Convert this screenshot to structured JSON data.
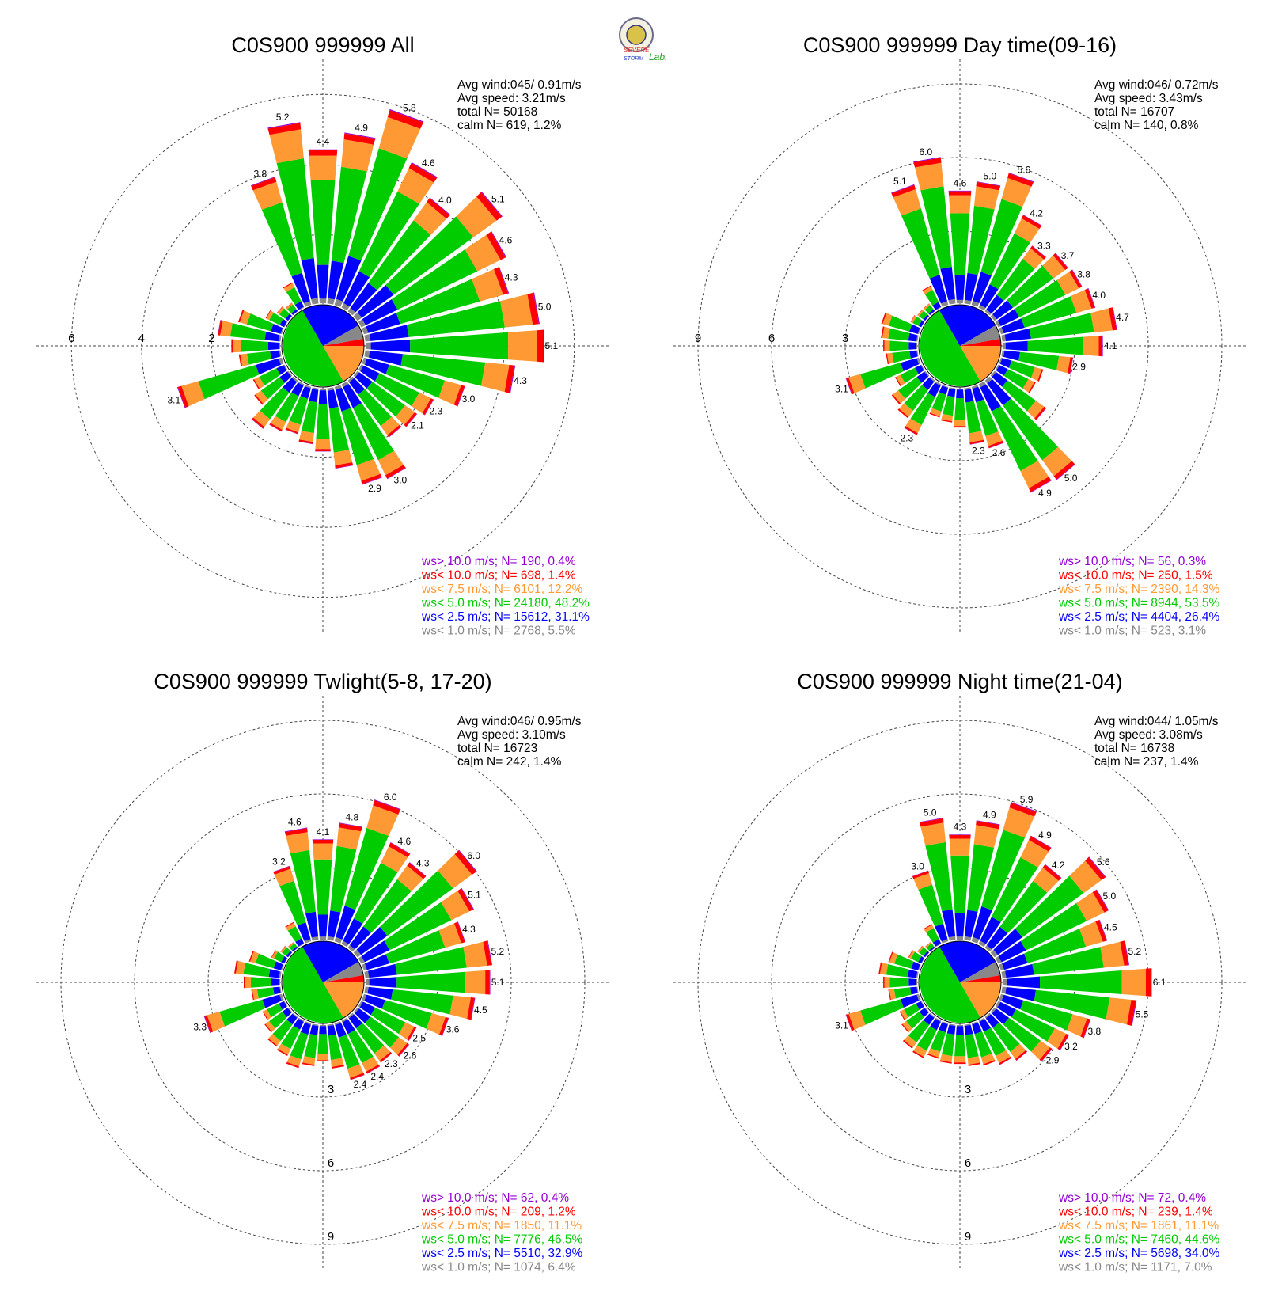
{
  "logo": {
    "text_severe": "SEVERE",
    "text_storm": "STORM",
    "text_lab": "Lab."
  },
  "categories": [
    {
      "name": "ws> 10.0 m/s",
      "color": "#9400d3"
    },
    {
      "name": "ws< 10.0 m/s",
      "color": "#ff0000"
    },
    {
      "name": "ws< 7.5 m/s",
      "color": "#ff9933"
    },
    {
      "name": "ws< 5.0 m/s",
      "color": "#00cc00"
    },
    {
      "name": "ws< 2.5 m/s",
      "color": "#0000ff"
    },
    {
      "name": "ws< 1.0 m/s",
      "color": "#888888"
    }
  ],
  "panels": [
    {
      "title": "C0S900 999999 All",
      "stats": [
        "Avg wind:045/ 0.91m/s",
        "Avg speed: 3.21m/s",
        "total N=      50168",
        "calm N=   619,   1.2%"
      ],
      "ring_labels": [
        "2",
        "4",
        "6"
      ],
      "legend": [
        "ws> 10.0 m/s; N=   190,  0.4%",
        "ws< 10.0 m/s; N=   698,  1.4%",
        "ws<  7.5 m/s; N=  6101, 12.2%",
        "ws<  5.0 m/s; N= 24180, 48.2%",
        "ws<  2.5 m/s; N= 15612, 31.1%",
        "ws<  1.0 m/s; N=  2768,  5.5%"
      ]
    },
    {
      "title": "C0S900 999999 Day time(09-16)",
      "stats": [
        "Avg wind:046/ 0.72m/s",
        "Avg speed: 3.43m/s",
        "total N=      16707",
        "calm N=   140,   0.8%"
      ],
      "ring_labels": [
        "3",
        "6",
        "9"
      ],
      "legend": [
        "ws> 10.0 m/s; N=    56,  0.3%",
        "ws< 10.0 m/s; N=   250,  1.5%",
        "ws<  7.5 m/s; N=  2390, 14.3%",
        "ws<  5.0 m/s; N=  8944, 53.5%",
        "ws<  2.5 m/s; N=  4404, 26.4%",
        "ws<  1.0 m/s; N=   523,  3.1%"
      ]
    },
    {
      "title": "C0S900 999999 Twlight(5-8, 17-20)",
      "stats": [
        "Avg wind:046/ 0.95m/s",
        "Avg speed: 3.10m/s",
        "total N=      16723",
        "calm N=   242,   1.4%"
      ],
      "ring_labels": [
        "3",
        "6",
        "9"
      ],
      "legend": [
        "ws> 10.0 m/s; N=    62,  0.4%",
        "ws< 10.0 m/s; N=   209,  1.2%",
        "ws<  7.5 m/s; N=  1850, 11.1%",
        "ws<  5.0 m/s; N=  7776, 46.5%",
        "ws<  2.5 m/s; N=  5510, 32.9%",
        "ws<  1.0 m/s; N=  1074,  6.4%"
      ]
    },
    {
      "title": "C0S900 999999 Night time(21-04)",
      "stats": [
        "Avg wind:044/ 1.05m/s",
        "Avg speed: 3.08m/s",
        "total N=      16738",
        "calm N=   237,   1.4%"
      ],
      "ring_labels": [
        "3",
        "6",
        "9"
      ],
      "legend": [
        "ws> 10.0 m/s; N=    72,  0.4%",
        "ws< 10.0 m/s; N=   239,  1.4%",
        "ws<  7.5 m/s; N=  1861, 11.1%",
        "ws<  5.0 m/s; N=  7460, 44.6%",
        "ws<  2.5 m/s; N=  5698, 34.0%",
        "ws<  1.0 m/s; N=  1171,  7.0%"
      ]
    }
  ],
  "chart_data": [
    {
      "type": "wind-rose",
      "title": "C0S900 999999 All",
      "radial_unit": "%",
      "rlim": [
        0,
        7
      ],
      "ring_ticks": [
        2,
        4,
        6
      ],
      "sector_count": 36,
      "stack_order": [
        "ws< 1.0 m/s",
        "ws< 2.5 m/s",
        "ws< 5.0 m/s",
        "ws< 7.5 m/s",
        "ws< 10.0 m/s",
        "ws> 10.0 m/s"
      ],
      "sector_angle_deg": [
        0,
        10,
        20,
        30,
        40,
        50,
        60,
        70,
        80,
        90,
        100,
        110,
        120,
        130,
        140,
        150,
        160,
        170,
        180,
        190,
        200,
        210,
        220,
        230,
        240,
        250,
        260,
        270,
        280,
        290,
        300,
        310,
        320,
        330,
        340,
        350
      ],
      "sector_totals": [
        4.4,
        4.9,
        5.8,
        4.6,
        4.0,
        5.1,
        4.6,
        4.3,
        5.0,
        5.1,
        4.3,
        3.0,
        2.3,
        2.1,
        2.0,
        3.0,
        2.9,
        2.3,
        1.8,
        1.6,
        1.4,
        1.5,
        1.7,
        1.2,
        1.0,
        3.1,
        1.2,
        1.4,
        1.8,
        1.3,
        0.6,
        0.4,
        0.3,
        0.8,
        3.8,
        5.2
      ],
      "sector_labels": [
        "4.4",
        "4.9",
        "5.8",
        "4.6",
        "4.0",
        "5.1",
        "4.6",
        "4.3",
        "5.0",
        "5.1",
        "4.3",
        "3.0",
        "2.3",
        "2.1",
        "",
        "3.0",
        "2.9",
        "",
        "",
        "",
        "",
        "",
        "",
        "",
        "",
        "3.1",
        "",
        "",
        "",
        "",
        "",
        "",
        "",
        "",
        "3.8",
        "5.2"
      ]
    },
    {
      "type": "wind-rose",
      "title": "C0S900 999999 Day time(09-16)",
      "radial_unit": "%",
      "rlim": [
        0,
        10
      ],
      "ring_ticks": [
        3,
        6,
        9
      ],
      "sector_count": 36,
      "stack_order": [
        "ws< 1.0 m/s",
        "ws< 2.5 m/s",
        "ws< 5.0 m/s",
        "ws< 7.5 m/s",
        "ws< 10.0 m/s",
        "ws> 10.0 m/s"
      ],
      "sector_angle_deg": [
        0,
        10,
        20,
        30,
        40,
        50,
        60,
        70,
        80,
        90,
        100,
        110,
        120,
        130,
        140,
        150,
        160,
        170,
        180,
        190,
        200,
        210,
        220,
        230,
        240,
        250,
        260,
        270,
        280,
        290,
        300,
        310,
        320,
        330,
        340,
        350
      ],
      "sector_totals": [
        4.6,
        5.0,
        5.6,
        4.2,
        3.3,
        3.7,
        3.8,
        4.0,
        4.7,
        4.1,
        2.9,
        1.8,
        1.7,
        2.6,
        5.0,
        4.9,
        2.6,
        2.3,
        1.6,
        1.4,
        1.3,
        2.3,
        1.9,
        1.7,
        1.2,
        3.1,
        1.3,
        1.4,
        1.5,
        1.6,
        0.5,
        0.4,
        0.4,
        1.0,
        5.1,
        6.0
      ],
      "sector_labels": [
        "4.6",
        "5.0",
        "5.6",
        "4.2",
        "3.3",
        "3.7",
        "3.8",
        "4.0",
        "4.7",
        "4.1",
        "2.9",
        "",
        "",
        "",
        "5.0",
        "4.9",
        "2.6",
        "2.3",
        "",
        "",
        "",
        "2.3",
        "",
        "",
        "",
        "3.1",
        "",
        "",
        "",
        "",
        "",
        "",
        "",
        "",
        "5.1",
        "6.0"
      ]
    },
    {
      "type": "wind-rose",
      "title": "C0S900 999999 Twlight(5-8, 17-20)",
      "radial_unit": "%",
      "rlim": [
        0,
        10
      ],
      "ring_ticks": [
        3,
        6,
        9
      ],
      "sector_count": 36,
      "stack_order": [
        "ws< 1.0 m/s",
        "ws< 2.5 m/s",
        "ws< 5.0 m/s",
        "ws< 7.5 m/s",
        "ws< 10.0 m/s",
        "ws> 10.0 m/s"
      ],
      "sector_angle_deg": [
        0,
        10,
        20,
        30,
        40,
        50,
        60,
        70,
        80,
        90,
        100,
        110,
        120,
        130,
        140,
        150,
        160,
        170,
        180,
        190,
        200,
        210,
        220,
        230,
        240,
        250,
        260,
        270,
        280,
        290,
        300,
        310,
        320,
        330,
        340,
        350
      ],
      "sector_totals": [
        4.1,
        4.8,
        6.0,
        4.6,
        4.3,
        6.0,
        5.1,
        4.3,
        5.2,
        5.1,
        4.5,
        3.6,
        2.5,
        2.6,
        2.3,
        2.4,
        2.4,
        1.8,
        1.5,
        1.7,
        1.9,
        1.6,
        1.5,
        1.2,
        1.0,
        3.3,
        1.2,
        1.5,
        1.9,
        1.4,
        0.6,
        0.4,
        0.3,
        1.0,
        3.2,
        4.6
      ],
      "sector_labels": [
        "4.1",
        "4.8",
        "6.0",
        "4.6",
        "4.3",
        "6.0",
        "5.1",
        "4.3",
        "5.2",
        "5.1",
        "4.5",
        "3.6",
        "2.5",
        "2.6",
        "2.3",
        "2.4",
        "2.4",
        "",
        "",
        "",
        "",
        "",
        "",
        "",
        "",
        "3.3",
        "",
        "",
        "",
        "",
        "",
        "",
        "",
        "",
        "3.2",
        "4.6"
      ]
    },
    {
      "type": "wind-rose",
      "title": "C0S900 999999 Night time(21-04)",
      "radial_unit": "%",
      "rlim": [
        0,
        10
      ],
      "ring_ticks": [
        3,
        6,
        9
      ],
      "sector_count": 36,
      "stack_order": [
        "ws< 1.0 m/s",
        "ws< 2.5 m/s",
        "ws< 5.0 m/s",
        "ws< 7.5 m/s",
        "ws< 10.0 m/s",
        "ws> 10.0 m/s"
      ],
      "sector_angle_deg": [
        0,
        10,
        20,
        30,
        40,
        50,
        60,
        70,
        80,
        90,
        100,
        110,
        120,
        130,
        140,
        150,
        160,
        170,
        180,
        190,
        200,
        210,
        220,
        230,
        240,
        250,
        260,
        270,
        280,
        290,
        300,
        310,
        320,
        330,
        340,
        350
      ],
      "sector_totals": [
        4.3,
        4.9,
        5.9,
        4.9,
        4.2,
        5.6,
        5.0,
        4.5,
        5.2,
        6.1,
        5.5,
        3.8,
        3.2,
        2.9,
        2.2,
        2.0,
        1.8,
        1.7,
        1.6,
        1.6,
        1.5,
        1.7,
        1.6,
        1.2,
        1.0,
        3.1,
        1.2,
        1.4,
        1.6,
        1.3,
        0.6,
        0.4,
        0.3,
        0.9,
        3.0,
        5.0
      ],
      "sector_labels": [
        "4.3",
        "4.9",
        "5.9",
        "4.9",
        "4.2",
        "5.6",
        "5.0",
        "4.5",
        "5.2",
        "6.1",
        "5.5",
        "3.8",
        "3.2",
        "2.9",
        "",
        "",
        "",
        "",
        "",
        "",
        "",
        "",
        "",
        "",
        "",
        "3.1",
        "",
        "",
        "",
        "",
        "",
        "",
        "",
        "",
        "3.0",
        "5.0"
      ]
    }
  ]
}
